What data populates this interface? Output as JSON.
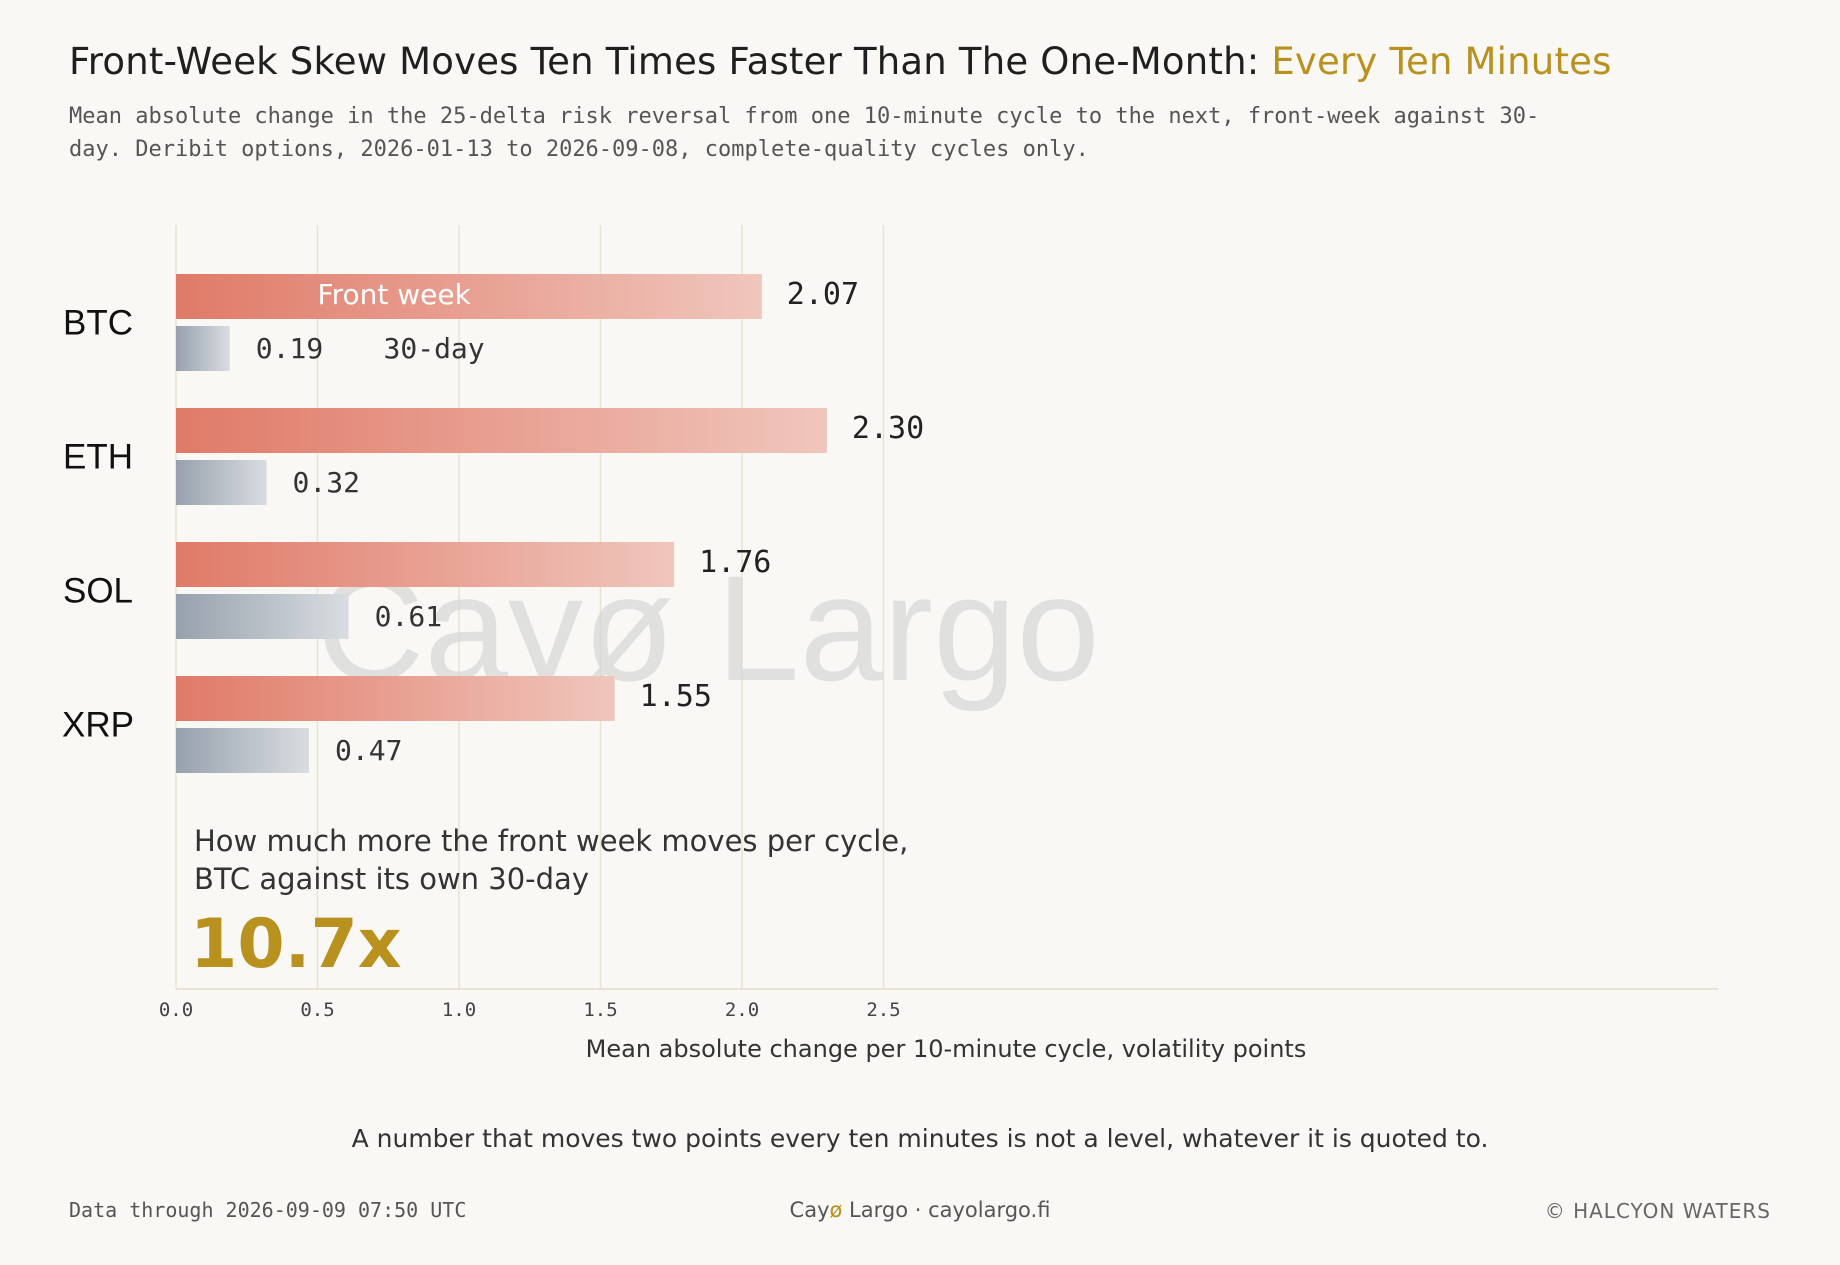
{
  "title_main": "Front-Week Skew Moves Ten Times Faster Than The One-Month: ",
  "title_accent": "Every Ten Minutes",
  "subtitle": "Mean absolute change in the 25-delta risk reversal from one 10-minute cycle to the next, front-week against 30-day. Deribit options, 2026-01-13 to 2026-09-08, complete-quality cycles only.",
  "watermark": "Cayø Largo",
  "callout": {
    "line1": "How much more the front week moves per cycle,",
    "line2": "BTC against its own 30-day",
    "value": "10.7x"
  },
  "footer": {
    "note": "A number that moves two points every ten minutes is not a level, whatever it is quoted to.",
    "left": "Data through 2026-09-09 07:50 UTC",
    "center_prefix": "Cay",
    "center_o": "ø",
    "center_suffix": " Largo  ·  cayolargo.fi",
    "right": "© HALCYON WATERS"
  },
  "colors": {
    "front_week": "#e07a68",
    "thirty_day": "#9aa4b0",
    "accent": "#b8911f",
    "grid": "#e8e4d2"
  },
  "chart_data": {
    "type": "bar",
    "orientation": "horizontal",
    "categories": [
      "BTC",
      "ETH",
      "SOL",
      "XRP"
    ],
    "series": [
      {
        "name": "Front week",
        "values": [
          2.07,
          2.3,
          1.76,
          1.55
        ]
      },
      {
        "name": "30-day",
        "values": [
          0.19,
          0.32,
          0.61,
          0.47
        ]
      }
    ],
    "value_labels": {
      "front_week": [
        "2.07",
        "2.30",
        "1.76",
        "1.55"
      ],
      "thirty_day": [
        "0.19",
        "0.32",
        "0.61",
        "0.47"
      ]
    },
    "xlim": [
      0,
      2.72
    ],
    "xticks": [
      0.0,
      0.5,
      1.0,
      1.5,
      2.0,
      2.5
    ],
    "xtick_labels": [
      "0.0",
      "0.5",
      "1.0",
      "1.5",
      "2.0",
      "2.5"
    ],
    "xlabel": "Mean absolute change per 10-minute cycle, volatility points",
    "grid": "vertical",
    "legend": "inline labels on BTC bars"
  }
}
